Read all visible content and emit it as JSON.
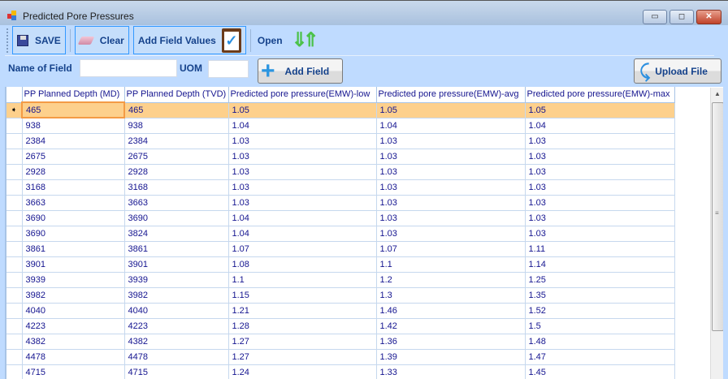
{
  "window": {
    "title": "Predicted Pore Pressures",
    "minimize": "▭",
    "maximize": "◻",
    "close": "✕"
  },
  "toolbar": {
    "save_label": "SAVE",
    "clear_label": "Clear",
    "add_field_values_label": "Add Field Values",
    "open_label": "Open"
  },
  "form": {
    "name_of_field_label": "Name of Field",
    "name_of_field_value": "",
    "uom_label": "UOM",
    "uom_value": "",
    "add_field_label": "Add Field",
    "upload_file_label": "Upload File"
  },
  "grid": {
    "columns": [
      "PP Planned Depth (MD)",
      "PP Planned Depth (TVD)",
      "Predicted pore pressure(EMW)-low",
      "Predicted pore pressure(EMW)-avg",
      "Predicted pore pressure(EMW)-max"
    ],
    "current_row_marker": "➧",
    "rows": [
      [
        "465",
        "465",
        "1.05",
        "1.05",
        "1.05"
      ],
      [
        "938",
        "938",
        "1.04",
        "1.04",
        "1.04"
      ],
      [
        "2384",
        "2384",
        "1.03",
        "1.03",
        "1.03"
      ],
      [
        "2675",
        "2675",
        "1.03",
        "1.03",
        "1.03"
      ],
      [
        "2928",
        "2928",
        "1.03",
        "1.03",
        "1.03"
      ],
      [
        "3168",
        "3168",
        "1.03",
        "1.03",
        "1.03"
      ],
      [
        "3663",
        "3663",
        "1.03",
        "1.03",
        "1.03"
      ],
      [
        "3690",
        "3690",
        "1.04",
        "1.03",
        "1.03"
      ],
      [
        "3690",
        "3824",
        "1.04",
        "1.03",
        "1.03"
      ],
      [
        "3861",
        "3861",
        "1.07",
        "1.07",
        "1.11"
      ],
      [
        "3901",
        "3901",
        "1.08",
        "1.1",
        "1.14"
      ],
      [
        "3939",
        "3939",
        "1.1",
        "1.2",
        "1.25"
      ],
      [
        "3982",
        "3982",
        "1.15",
        "1.3",
        "1.35"
      ],
      [
        "4040",
        "4040",
        "1.21",
        "1.46",
        "1.52"
      ],
      [
        "4223",
        "4223",
        "1.28",
        "1.42",
        "1.5"
      ],
      [
        "4382",
        "4382",
        "1.27",
        "1.36",
        "1.48"
      ],
      [
        "4478",
        "4478",
        "1.27",
        "1.39",
        "1.47"
      ],
      [
        "4715",
        "4715",
        "1.24",
        "1.33",
        "1.45"
      ]
    ]
  }
}
